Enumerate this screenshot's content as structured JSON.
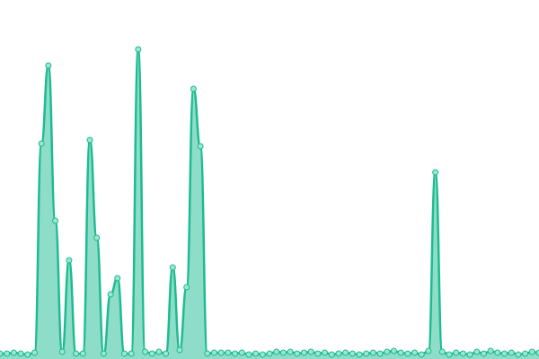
{
  "chart_data": {
    "type": "area",
    "values": [
      2,
      2,
      3,
      2,
      1,
      3,
      236,
      323,
      150,
      4,
      106,
      2,
      2,
      240,
      131,
      2,
      68,
      86,
      2,
      2,
      341,
      4,
      2,
      4,
      2,
      98,
      6,
      76,
      297,
      233,
      2,
      3,
      3,
      3,
      2,
      3,
      1,
      2,
      1,
      2,
      4,
      3,
      4,
      2,
      3,
      4,
      2,
      3,
      1,
      2,
      3,
      2,
      1,
      2,
      3,
      2,
      4,
      5,
      3,
      2,
      3,
      1,
      5,
      204,
      4,
      1,
      3,
      2,
      1,
      4,
      2,
      5,
      3,
      2,
      3,
      1,
      2,
      4,
      3
    ],
    "ylim": [
      0,
      360
    ],
    "color": "#1dbb92"
  }
}
